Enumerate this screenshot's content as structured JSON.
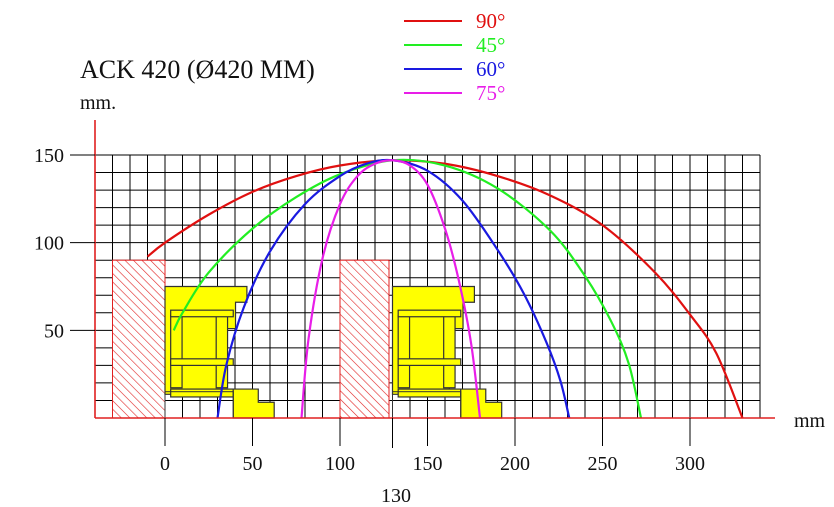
{
  "chart_data": {
    "type": "line",
    "title": "ACK 420 (Ø420 MM)",
    "ylabel": "mm.",
    "xlabel": "mm",
    "xlim": [
      -40,
      340
    ],
    "ylim": [
      0,
      150
    ],
    "x_ticks": [
      0,
      50,
      100,
      150,
      200,
      250,
      300
    ],
    "y_ticks": [
      50,
      100,
      150
    ],
    "extra_x_label": {
      "label": "130",
      "x": 130
    },
    "grid": true,
    "legend_position": "top-right",
    "pivot_x": 130,
    "series": [
      {
        "name": "90°",
        "color": "#e01010",
        "x": [
          -10,
          0,
          25,
          50,
          75,
          100,
          130,
          160,
          190,
          220,
          250,
          280,
          300,
          315,
          330
        ],
        "y": [
          92,
          100,
          116,
          129,
          138,
          144,
          147,
          145,
          138,
          127,
          110,
          83,
          59,
          37,
          0
        ]
      },
      {
        "name": "45°",
        "color": "#22ee22",
        "x": [
          5,
          10,
          25,
          50,
          75,
          100,
          130,
          160,
          190,
          220,
          240,
          255,
          265,
          272
        ],
        "y": [
          50,
          60,
          83,
          108,
          126,
          139,
          147,
          144,
          131,
          107,
          81,
          55,
          31,
          0
        ]
      },
      {
        "name": "60°",
        "color": "#1a1ae0",
        "x": [
          30,
          35,
          45,
          60,
          80,
          100,
          115,
          130,
          150,
          170,
          190,
          205,
          218,
          226,
          231
        ],
        "y": [
          0,
          30,
          63,
          95,
          122,
          138,
          145,
          147,
          141,
          124,
          96,
          71,
          43,
          21,
          0
        ]
      },
      {
        "name": "75°",
        "color": "#e81ee8",
        "x": [
          78,
          82,
          90,
          100,
          110,
          120,
          130,
          140,
          150,
          160,
          168,
          175,
          180
        ],
        "y": [
          0,
          45,
          91,
          122,
          138,
          145,
          147,
          144,
          133,
          108,
          78,
          42,
          0
        ]
      }
    ],
    "wall_regions": [
      {
        "x0": -30,
        "x1": 0,
        "y0": 0,
        "y1": 90
      },
      {
        "x0": 100,
        "x1": 128,
        "y0": 0,
        "y1": 90
      }
    ],
    "frame_profiles": [
      {
        "x0": 0,
        "x1": 65,
        "y0": 0,
        "y1": 75
      },
      {
        "x0": 130,
        "x1": 195,
        "y0": 0,
        "y1": 75
      }
    ]
  }
}
